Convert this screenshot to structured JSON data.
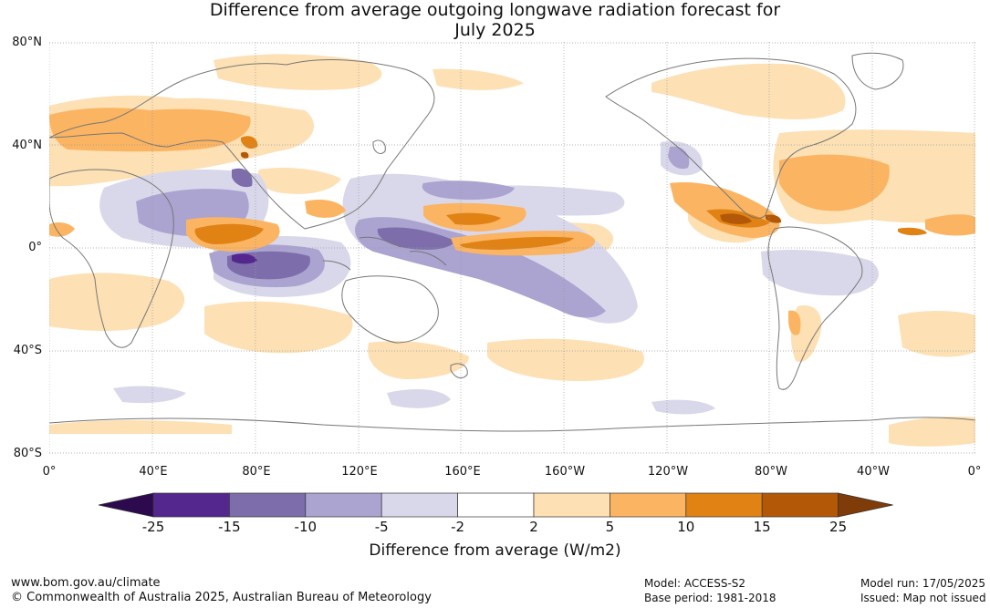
{
  "title_line1": "Difference from average outgoing longwave radiation forecast for",
  "title_line2": "July 2025",
  "lat_labels": [
    "80°N",
    "40°N",
    "0°",
    "40°S",
    "80°S"
  ],
  "lon_labels": [
    "0°",
    "40°E",
    "80°E",
    "120°E",
    "160°E",
    "160°W",
    "120°W",
    "80°W",
    "40°W",
    "0°"
  ],
  "legend": {
    "title": "Difference from average (W/m2)",
    "ticks": [
      "-25",
      "-15",
      "-10",
      "-5",
      "-2",
      "2",
      "5",
      "10",
      "15",
      "25"
    ],
    "colors": [
      "#2d0a4e",
      "#54278f",
      "#7d6eab",
      "#aba3d0",
      "#d9d8ea",
      "#ffffff",
      "#fde0b4",
      "#fbb462",
      "#e08214",
      "#b35806",
      "#7f3b08"
    ]
  },
  "colors": {
    "land_outline": "#777777",
    "grid": "#999999"
  },
  "footer": {
    "website": "www.bom.gov.au/climate",
    "copyright": "© Commonwealth of Australia 2025, Australian Bureau of Meteorology",
    "model": "Model: ACCESS-S2",
    "base_period": "Base period: 1981-2018",
    "model_run": "Model run: 17/05/2025",
    "issued": "Issued: Map not issued"
  }
}
